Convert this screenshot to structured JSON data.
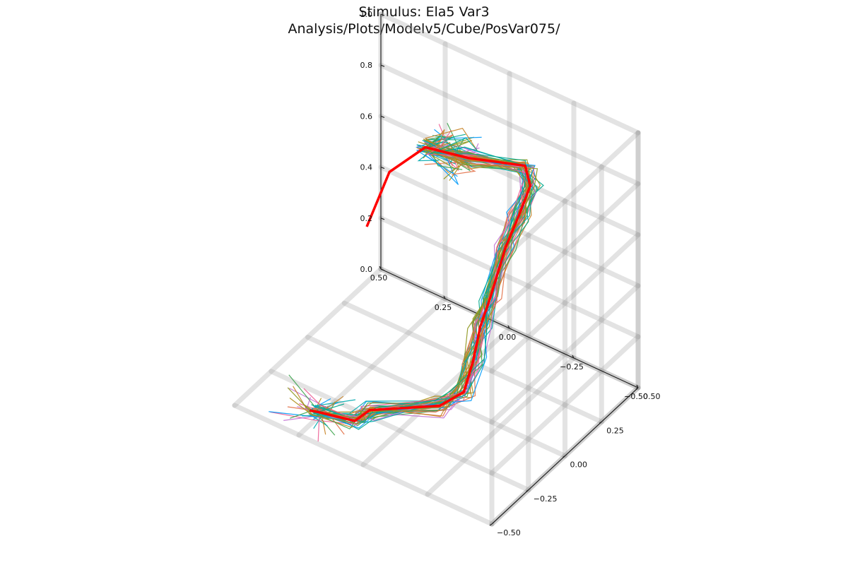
{
  "chart_data": {
    "type": "line3d",
    "title": "Stimulus: Ela5 Var3",
    "subtitle": "Analysis/Plots/Modelv5/Cube/PosVar075/",
    "xlabel": "",
    "ylabel": "",
    "zlabel": "",
    "xlim": [
      -0.5,
      0.5
    ],
    "ylim": [
      -0.5,
      0.5
    ],
    "zlim": [
      0.0,
      1.0
    ],
    "x_ticks": [
      "−0.50",
      "−0.25",
      "0.00",
      "0.25",
      "0.50"
    ],
    "y_ticks": [
      "−0.50",
      "−0.25",
      "0.00",
      "0.25",
      "0.50"
    ],
    "z_ticks": [
      "0.0",
      "0.2",
      "0.4",
      "0.6",
      "0.8",
      "1.0"
    ],
    "grid": true,
    "legend": "none",
    "highlight_color": "#ff0000",
    "series_colors": [
      "#009af9",
      "#e26f46",
      "#3da44d",
      "#c271d2",
      "#ac8e18",
      "#00a9ad",
      "#ed5e93",
      "#c68225",
      "#00a98d",
      "#8e971e"
    ],
    "reference_trajectory": [
      {
        "x": 0.1,
        "y": -0.3,
        "z": 0.78
      },
      {
        "x": 0.08,
        "y": -0.18,
        "z": 0.94
      },
      {
        "x": 0.02,
        "y": -0.04,
        "z": 0.99
      },
      {
        "x": -0.08,
        "y": 0.08,
        "z": 0.93
      },
      {
        "x": -0.22,
        "y": 0.22,
        "z": 0.89
      },
      {
        "x": -0.24,
        "y": 0.22,
        "z": 0.82
      },
      {
        "x": -0.22,
        "y": 0.18,
        "z": 0.72
      },
      {
        "x": -0.19,
        "y": 0.14,
        "z": 0.6
      },
      {
        "x": -0.17,
        "y": 0.07,
        "z": 0.43
      },
      {
        "x": -0.16,
        "y": 0.02,
        "z": 0.34
      },
      {
        "x": -0.15,
        "y": -0.01,
        "z": 0.22
      },
      {
        "x": -0.13,
        "y": -0.04,
        "z": 0.1
      },
      {
        "x": -0.07,
        "y": -0.1,
        "z": 0.05
      },
      {
        "x": 0.1,
        "y": -0.28,
        "z": 0.05
      },
      {
        "x": 0.13,
        "y": -0.33,
        "z": 0.02
      },
      {
        "x": 0.24,
        "y": -0.38,
        "z": 0.03
      },
      {
        "x": 0.22,
        "y": -0.48,
        "z": 0.1
      }
    ]
  }
}
